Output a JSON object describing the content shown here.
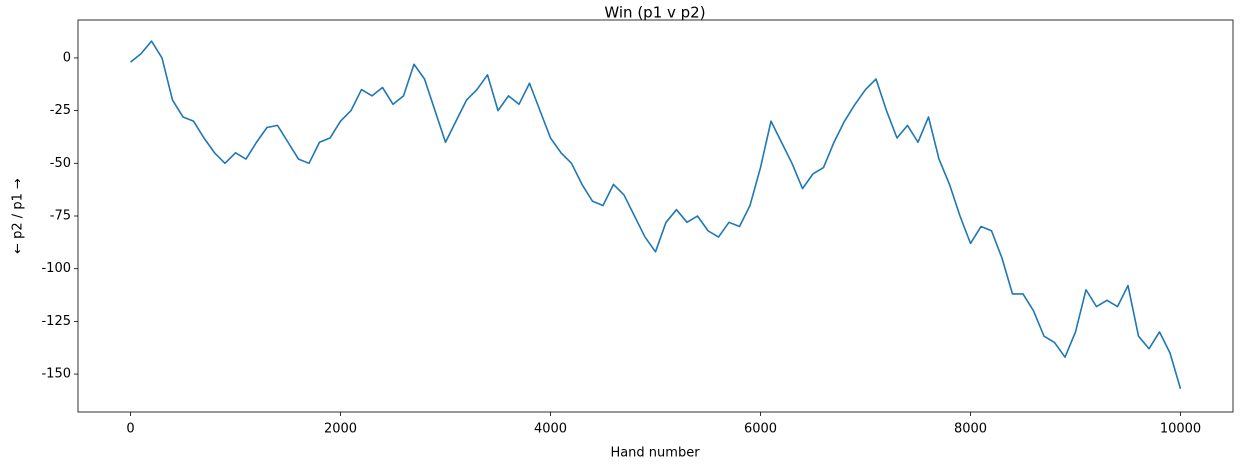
{
  "chart_data": {
    "type": "line",
    "title": "Win (p1 v p2)",
    "xlabel": "Hand number",
    "ylabel": "← p2 / p1 →",
    "color": "#1f77b4",
    "x": [
      0,
      100,
      200,
      300,
      400,
      500,
      600,
      700,
      800,
      900,
      1000,
      1100,
      1200,
      1300,
      1400,
      1500,
      1600,
      1700,
      1800,
      1900,
      2000,
      2100,
      2200,
      2300,
      2400,
      2500,
      2600,
      2700,
      2800,
      2900,
      3000,
      3100,
      3200,
      3300,
      3400,
      3500,
      3600,
      3700,
      3800,
      3900,
      4000,
      4100,
      4200,
      4300,
      4400,
      4500,
      4600,
      4700,
      4800,
      4900,
      5000,
      5100,
      5200,
      5300,
      5400,
      5500,
      5600,
      5700,
      5800,
      5900,
      6000,
      6100,
      6200,
      6300,
      6400,
      6500,
      6600,
      6700,
      6800,
      6900,
      7000,
      7100,
      7200,
      7300,
      7400,
      7500,
      7600,
      7700,
      7800,
      7900,
      8000,
      8100,
      8200,
      8300,
      8400,
      8500,
      8600,
      8700,
      8800,
      8900,
      9000,
      9100,
      9200,
      9300,
      9400,
      9500,
      9600,
      9700,
      9800,
      9900,
      10000
    ],
    "values": [
      -2,
      2,
      8,
      0,
      -20,
      -28,
      -30,
      -38,
      -45,
      -50,
      -45,
      -48,
      -40,
      -33,
      -32,
      -40,
      -48,
      -50,
      -40,
      -38,
      -30,
      -25,
      -15,
      -18,
      -14,
      -22,
      -18,
      -3,
      -10,
      -25,
      -40,
      -30,
      -20,
      -15,
      -8,
      -25,
      -18,
      -22,
      -12,
      -25,
      -38,
      -45,
      -50,
      -60,
      -68,
      -70,
      -60,
      -65,
      -75,
      -85,
      -92,
      -78,
      -72,
      -78,
      -75,
      -82,
      -85,
      -78,
      -80,
      -70,
      -52,
      -30,
      -40,
      -50,
      -62,
      -55,
      -52,
      -40,
      -30,
      -22,
      -15,
      -10,
      -25,
      -38,
      -32,
      -40,
      -28,
      -48,
      -60,
      -75,
      -88,
      -80,
      -82,
      -95,
      -112,
      -112,
      -120,
      -132,
      -135,
      -142,
      -130,
      -110,
      -118,
      -115,
      -118,
      -108,
      -132,
      -138,
      -130,
      -140,
      -157
    ],
    "xlim": [
      -500,
      10500
    ],
    "ylim": [
      -168,
      18
    ],
    "xticks": [
      0,
      2000,
      4000,
      6000,
      8000,
      10000
    ],
    "yticks": [
      -150,
      -125,
      -100,
      -75,
      -50,
      -25,
      0
    ]
  }
}
